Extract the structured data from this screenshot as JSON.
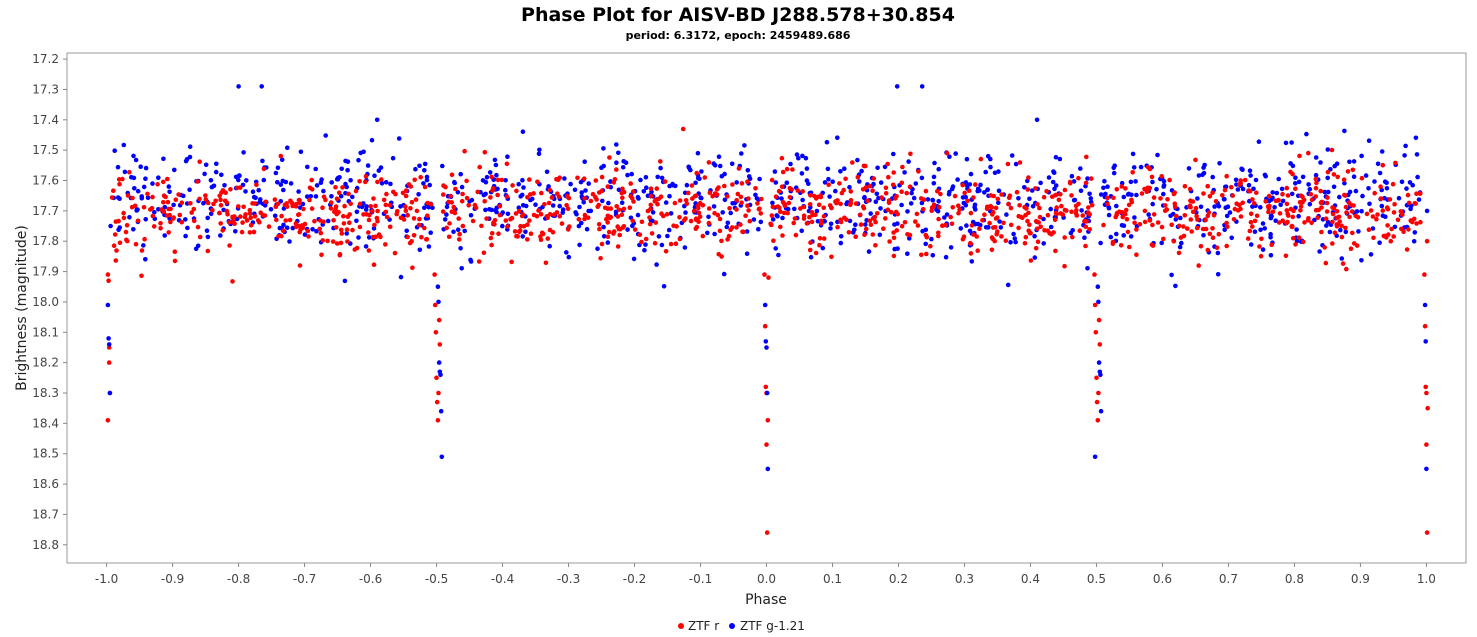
{
  "chart_data": {
    "type": "scatter",
    "title": "Phase Plot for AISV-BD J288.578+30.854",
    "subtitle": "period: 6.3172, epoch: 2459489.686",
    "xlabel": "Phase",
    "ylabel": "Brightness (magnitude)",
    "xlim": [
      -1.06,
      1.06
    ],
    "ylim": [
      18.86,
      17.18
    ],
    "y_inverted": true,
    "x_ticks": [
      -1.0,
      -0.9,
      -0.8,
      -0.7,
      -0.6,
      -0.5,
      -0.4,
      -0.3,
      -0.2,
      -0.1,
      0.0,
      0.1,
      0.2,
      0.3,
      0.4,
      0.5,
      0.6,
      0.7,
      0.8,
      0.9,
      1.0
    ],
    "y_ticks": [
      17.2,
      17.3,
      17.4,
      17.5,
      17.6,
      17.7,
      17.8,
      17.9,
      18.0,
      18.1,
      18.2,
      18.3,
      18.4,
      18.5,
      18.6,
      18.7,
      18.8
    ],
    "grid": false,
    "legend_position": "bottom-center",
    "series": [
      {
        "name": "ZTF r",
        "color": "#ff0000",
        "baseline": 17.7,
        "scatter": 0.07,
        "n_scatter": 1200,
        "eclipse_points": [
          [
            -0.998,
            17.91
          ],
          [
            -0.997,
            17.93
          ],
          [
            -0.996,
            18.2
          ],
          [
            -0.995,
            18.3
          ],
          [
            -0.998,
            18.39
          ],
          [
            -0.996,
            18.15
          ],
          [
            -0.503,
            17.91
          ],
          [
            -0.502,
            18.01
          ],
          [
            -0.501,
            18.1
          ],
          [
            -0.5,
            18.25
          ],
          [
            -0.499,
            18.33
          ],
          [
            -0.498,
            18.39
          ],
          [
            -0.497,
            18.3
          ],
          [
            -0.496,
            18.06
          ],
          [
            -0.495,
            18.14
          ],
          [
            -0.003,
            17.91
          ],
          [
            -0.002,
            18.08
          ],
          [
            -0.001,
            18.28
          ],
          [
            0.0,
            18.3
          ],
          [
            0.0,
            18.47
          ],
          [
            0.001,
            18.76
          ],
          [
            0.002,
            18.39
          ],
          [
            0.003,
            17.92
          ],
          [
            0.497,
            17.91
          ],
          [
            0.498,
            18.01
          ],
          [
            0.499,
            18.1
          ],
          [
            0.5,
            18.25
          ],
          [
            0.501,
            18.33
          ],
          [
            0.502,
            18.39
          ],
          [
            0.503,
            18.3
          ],
          [
            0.504,
            18.06
          ],
          [
            0.505,
            18.14
          ],
          [
            0.997,
            17.91
          ],
          [
            0.998,
            18.08
          ],
          [
            0.999,
            18.28
          ],
          [
            1.0,
            18.3
          ],
          [
            1.0,
            18.47
          ],
          [
            1.001,
            18.76
          ],
          [
            1.002,
            18.35
          ],
          [
            1.001,
            17.8
          ]
        ]
      },
      {
        "name": "ZTF g-1.21",
        "color": "#0000ff",
        "baseline": 17.67,
        "scatter": 0.085,
        "n_scatter": 1100,
        "eclipse_points": [
          [
            -0.998,
            18.01
          ],
          [
            -0.997,
            18.12
          ],
          [
            -0.996,
            18.14
          ],
          [
            -0.995,
            18.3
          ],
          [
            -0.994,
            17.75
          ],
          [
            -0.8,
            17.29
          ],
          [
            -0.765,
            17.29
          ],
          [
            -0.59,
            17.4
          ],
          [
            -0.498,
            17.95
          ],
          [
            -0.497,
            18.0
          ],
          [
            -0.496,
            18.2
          ],
          [
            -0.495,
            18.23
          ],
          [
            -0.494,
            18.24
          ],
          [
            -0.493,
            18.36
          ],
          [
            -0.492,
            18.51
          ],
          [
            -0.002,
            18.01
          ],
          [
            -0.001,
            18.13
          ],
          [
            0.0,
            18.15
          ],
          [
            0.001,
            18.3
          ],
          [
            0.002,
            18.55
          ],
          [
            0.198,
            17.29
          ],
          [
            0.236,
            17.29
          ],
          [
            0.41,
            17.4
          ],
          [
            0.502,
            17.95
          ],
          [
            0.503,
            18.0
          ],
          [
            0.504,
            18.2
          ],
          [
            0.505,
            18.23
          ],
          [
            0.506,
            18.24
          ],
          [
            0.507,
            18.36
          ],
          [
            0.498,
            18.51
          ],
          [
            0.998,
            18.01
          ],
          [
            0.999,
            18.13
          ],
          [
            1.0,
            18.55
          ],
          [
            1.001,
            17.7
          ]
        ]
      }
    ]
  },
  "legend": {
    "items": [
      {
        "label": "ZTF r",
        "color": "#ff0000"
      },
      {
        "label": "ZTF g-1.21",
        "color": "#0000ff"
      }
    ]
  }
}
